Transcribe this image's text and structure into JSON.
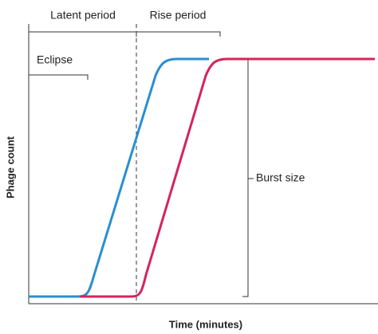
{
  "labels": {
    "latent": "Latent period",
    "rise": "Rise period",
    "eclipse": "Eclipse",
    "burst": "Burst size",
    "y_axis": "Phage count",
    "x_axis": "Time (minutes)"
  }
}
